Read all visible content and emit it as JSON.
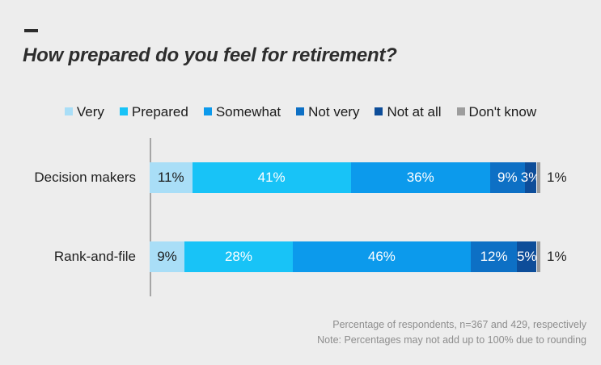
{
  "page": {
    "background_color": "#ededed"
  },
  "chart_data": {
    "type": "bar",
    "orientation": "horizontal",
    "stacked": true,
    "title": "How prepared do you feel for retirement?",
    "legend_position": "top",
    "value_suffix": "%",
    "categories": [
      "Decision makers",
      "Rank-and-file"
    ],
    "series": [
      {
        "name": "Very",
        "color": "#a9def7",
        "values": [
          11,
          9
        ],
        "label_color": "#1c1c1c",
        "label_inside": true
      },
      {
        "name": "Prepared",
        "color": "#18c3f7",
        "values": [
          41,
          28
        ],
        "label_color": "#ffffff",
        "label_inside": true
      },
      {
        "name": "Somewhat",
        "color": "#0c9aec",
        "values": [
          36,
          46
        ],
        "label_color": "#ffffff",
        "label_inside": true
      },
      {
        "name": "Not very",
        "color": "#0d70c5",
        "values": [
          9,
          12
        ],
        "label_color": "#ffffff",
        "label_inside": true
      },
      {
        "name": "Not at all",
        "color": "#0d4d99",
        "values": [
          3,
          5
        ],
        "label_color": "#ffffff",
        "label_inside": true
      },
      {
        "name": "Don't know",
        "color": "#9d9d9d",
        "values": [
          1,
          1
        ],
        "label_color": "#262626",
        "label_inside": false
      }
    ],
    "axis_line_color": "#a6a6a6",
    "grid": false,
    "notes": [
      "Percentage of respondents, n=367 and 429, respectively",
      "Note: Percentages may not add up to 100% due to rounding"
    ]
  }
}
